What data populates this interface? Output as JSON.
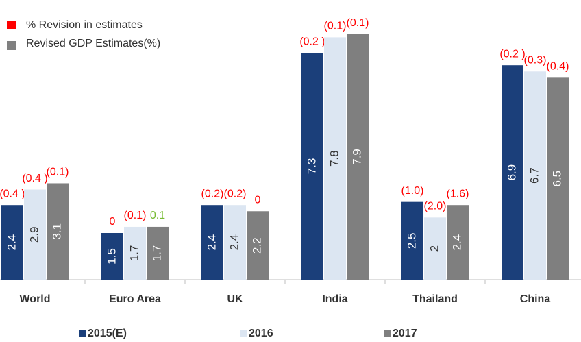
{
  "chart_data": {
    "type": "bar",
    "legend_top": [
      {
        "label": "% Revision in estimates",
        "color": "#ff0000"
      },
      {
        "label": "Revised GDP Estimates(%)",
        "color": "#808080"
      }
    ],
    "categories": [
      "World",
      "Euro Area",
      "UK",
      "India",
      "Thailand",
      "China"
    ],
    "series": [
      {
        "name": "2015(E)",
        "color": "#1b3f7a",
        "text_color": "#ffffff",
        "values": [
          2.4,
          1.5,
          2.4,
          7.3,
          2.5,
          6.9
        ],
        "revisions": [
          -0.4,
          0,
          -0.2,
          -0.2,
          -1.0,
          -0.2
        ],
        "revision_labels": [
          "(0.4 )",
          "0",
          "(0.2)",
          "(0.2 )",
          "(1.0)",
          "(0.2 )"
        ]
      },
      {
        "name": "2016",
        "color": "#dce6f2",
        "text_color": "#333333",
        "values": [
          2.9,
          1.7,
          2.4,
          7.8,
          2,
          6.7
        ],
        "revisions": [
          -0.4,
          -0.1,
          -0.2,
          -0.1,
          -2.0,
          -0.3
        ],
        "revision_labels": [
          "(0.4 )",
          "(0.1)",
          "(0.2)",
          "(0.1)",
          "(2.0)",
          "(0.3)"
        ]
      },
      {
        "name": "2017",
        "color": "#7f7f7f",
        "text_color": "#ffffff",
        "values": [
          3.1,
          1.7,
          2.2,
          7.9,
          2.4,
          6.5
        ],
        "revisions": [
          -0.1,
          0.1,
          0,
          -0.1,
          -1.6,
          -0.4
        ],
        "revision_labels": [
          "(0.1)",
          "0.1",
          "0",
          "(0.1)",
          "(1.6)",
          "(0.4)"
        ]
      }
    ],
    "revision_color": "#ff0000",
    "positive_revision_color": "#77bb33",
    "ylim": [
      0,
      9
    ]
  }
}
